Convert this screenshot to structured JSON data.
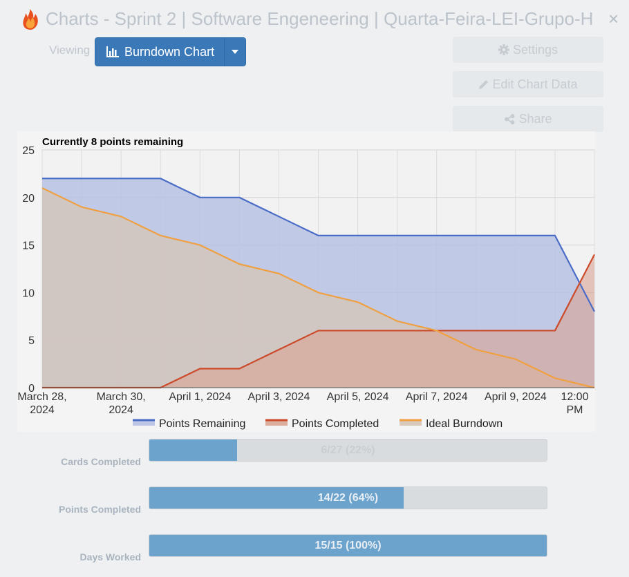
{
  "header": {
    "title": "Charts - Sprint 2 | Software Engeneering | Quarta-Feira-LEI-Grupo-H",
    "close_symbol": "×",
    "icons": {
      "logo": "flame-logo-icon",
      "close": "close-icon"
    }
  },
  "toolbar": {
    "viewing_label": "Viewing",
    "view_button_label": "Burndown Chart",
    "settings_label": "Settings",
    "edit_label": "Edit Chart Data",
    "share_label": "Share",
    "icons": {
      "view": "bar-chart-icon",
      "caret": "caret-down-icon",
      "settings": "gear-icon",
      "edit": "pencil-icon",
      "share": "share-icon"
    }
  },
  "chart_data": {
    "type": "area",
    "title": "Currently 8 points remaining",
    "x_tick_labels": [
      [
        "March 28,",
        "2024"
      ],
      [
        "March 30,",
        "2024"
      ],
      [
        "April 1, 2024"
      ],
      [
        "April 3, 2024"
      ],
      [
        "April 5, 2024"
      ],
      [
        "April 7, 2024"
      ],
      [
        "April 9, 2024"
      ],
      [
        "12:00",
        "PM"
      ]
    ],
    "x_ticks": [
      0,
      2,
      4,
      6,
      8,
      10,
      12,
      13.5
    ],
    "x_range": [
      0,
      14
    ],
    "y_ticks": [
      0,
      5,
      10,
      15,
      20,
      25
    ],
    "ylim": [
      0,
      25
    ],
    "grid": true,
    "legend_position": "bottom",
    "series": [
      {
        "name": "Points Remaining",
        "color": "#4a6cc7",
        "fill": "#b7c2e3",
        "x": [
          0,
          1,
          2,
          3,
          4,
          5,
          6,
          7,
          8,
          9,
          10,
          11,
          12,
          13,
          14
        ],
        "values": [
          22,
          22,
          22,
          22,
          20,
          20,
          18,
          16,
          16,
          16,
          16,
          16,
          16,
          16,
          8
        ]
      },
      {
        "name": "Points Completed",
        "color": "#cc4a2a",
        "fill": "#d9a492",
        "x": [
          0,
          1,
          2,
          3,
          4,
          5,
          6,
          7,
          8,
          9,
          10,
          11,
          12,
          13,
          14
        ],
        "values": [
          0,
          0,
          0,
          0,
          2,
          2,
          4,
          6,
          6,
          6,
          6,
          6,
          6,
          6,
          14
        ]
      },
      {
        "name": "Ideal Burndown",
        "color": "#f0a040",
        "fill": "#d6c4b5",
        "x": [
          0,
          1,
          2,
          3,
          4,
          5,
          6,
          7,
          8,
          9,
          10,
          11,
          12,
          13,
          14
        ],
        "values": [
          21,
          19,
          18,
          16,
          15,
          13,
          12,
          10,
          9,
          7,
          6,
          4,
          3,
          1,
          0
        ]
      }
    ]
  },
  "stats": [
    {
      "label": "Cards Completed",
      "text": "6/27 (22%)",
      "fraction": 0.22
    },
    {
      "label": "Points Completed",
      "text": "14/22 (64%)",
      "fraction": 0.64
    },
    {
      "label": "Days Worked",
      "text": "15/15 (100%)",
      "fraction": 1.0
    }
  ],
  "colors": {
    "accent": "#3a78b8",
    "progress_fill": "#6ca3cc",
    "progress_track": "#d9dcdf"
  }
}
